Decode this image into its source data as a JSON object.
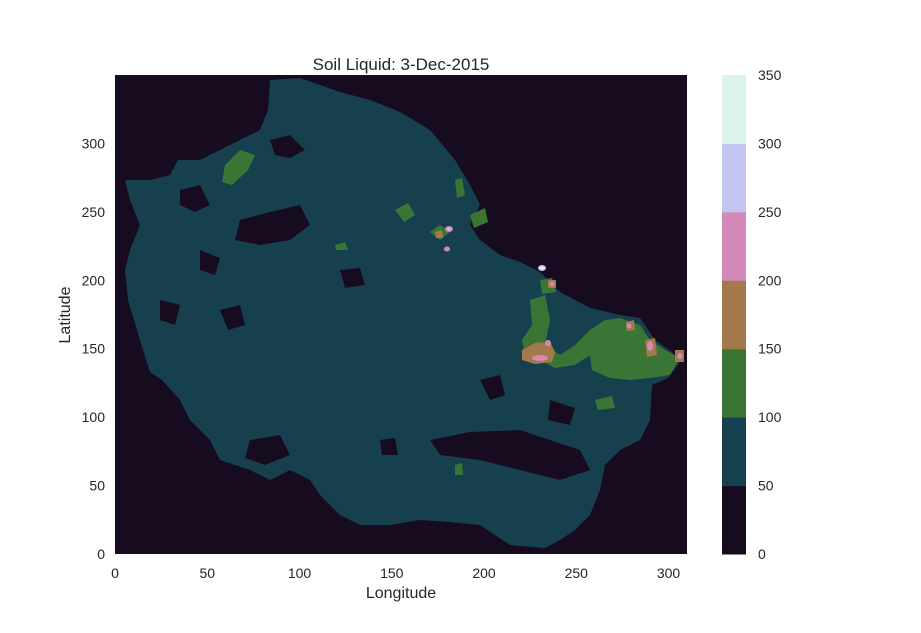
{
  "chart_data": {
    "type": "heatmap",
    "title": "Soil Liquid: 3-Dec-2015",
    "xlabel": "Longitude",
    "ylabel": "Latitude",
    "xlim": [
      0,
      310
    ],
    "ylim": [
      0,
      350
    ],
    "x_ticks": [
      "0",
      "50",
      "100",
      "150",
      "200",
      "250",
      "300"
    ],
    "y_ticks": [
      "0",
      "50",
      "100",
      "150",
      "200",
      "250",
      "300"
    ],
    "colorbar": {
      "ticks": [
        "0",
        "50",
        "100",
        "150",
        "200",
        "250",
        "300",
        "350"
      ],
      "levels": [
        0,
        50,
        100,
        150,
        200,
        250,
        300,
        350
      ],
      "colors": [
        "#170c1f",
        "#17404f",
        "#3a7535",
        "#a3784a",
        "#d48ab8",
        "#c2c4f2",
        "#ddf4ee"
      ]
    },
    "grid": false,
    "description": [
      {
        "region": "background outside landmass",
        "level_range": [
          0,
          50
        ]
      },
      {
        "region": "most of landmass",
        "level_range": [
          50,
          100
        ]
      },
      {
        "region": "eastern area around longitude 230-300, latitude 120-190",
        "level_range": [
          100,
          150
        ]
      },
      {
        "region": "hotspots near (230,150), (290,150), (280,170)",
        "level_range": [
          150,
          250
        ]
      },
      {
        "region": "peaks near (230,210) and (182,235)",
        "level_range": [
          250,
          350
        ]
      }
    ]
  }
}
